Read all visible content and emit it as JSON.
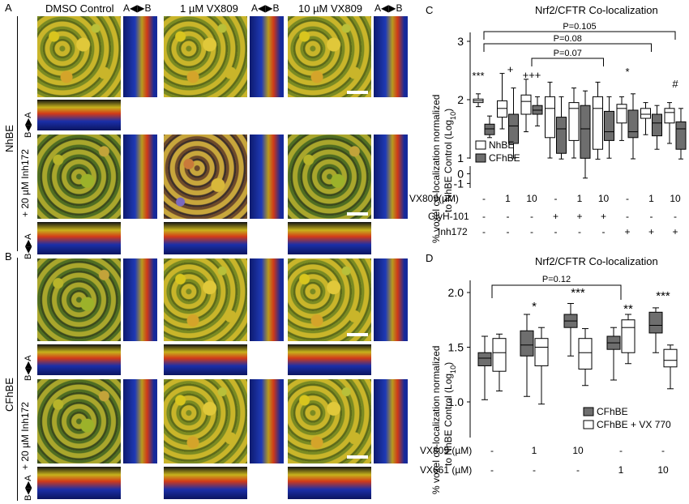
{
  "panel_letters": {
    "a": "A",
    "b": "B",
    "c": "C",
    "d": "D"
  },
  "micro": {
    "col1": "DMSO Control",
    "col2": "1 µM VX809",
    "col3": "10 µM VX809",
    "axis_horizontal": "A◀▶B",
    "axis_vertical": "B◀▶A",
    "row_nhbe": "NhBE",
    "row_cfhbe": "CFhBE",
    "inh_label": "+ 20 µM Inh172"
  },
  "chart_data": [
    {
      "type": "box",
      "title": "Nrf2/CFTR Co-localization",
      "ylabel_line1": "% voxel co-localization normalized",
      "ylabel_line2_prefix": "to NhBE Control (Log",
      "ylabel_line2_sub": "10",
      "ylabel_line2_suffix": ")",
      "yticks": [
        "3",
        "2",
        "1",
        "0",
        "-1"
      ],
      "legend": [
        {
          "name": "NhBE",
          "color": "#ffffff"
        },
        {
          "name": "CFhBE",
          "color": "#6e6e6e"
        }
      ],
      "groups": [
        {
          "vx809": "-",
          "glyh": "-",
          "inh": "-",
          "nhbe": [
            1.88,
            1.95,
            1.98,
            2.01,
            2.1
          ],
          "cf": [
            1.35,
            1.4,
            1.5,
            1.58,
            1.72
          ]
        },
        {
          "vx809": "1",
          "glyh": "-",
          "inh": "-",
          "nhbe": [
            1.5,
            1.7,
            1.85,
            1.98,
            2.45
          ],
          "cf": [
            1.0,
            1.25,
            1.55,
            1.75,
            2.2
          ]
        },
        {
          "vx809": "10",
          "glyh": "-",
          "inh": "-",
          "nhbe": [
            1.45,
            1.75,
            1.97,
            2.08,
            2.35
          ],
          "cf": [
            1.55,
            1.75,
            1.82,
            1.9,
            2.05
          ]
        },
        {
          "vx809": "-",
          "glyh": "+",
          "inh": "-",
          "nhbe": [
            1.0,
            1.35,
            1.85,
            2.05,
            2.3
          ],
          "cf": [
            0.4,
            1.08,
            1.5,
            1.7,
            2.05
          ]
        },
        {
          "vx809": "1",
          "glyh": "+",
          "inh": "-",
          "nhbe": [
            1.0,
            1.3,
            1.85,
            1.95,
            2.2
          ],
          "cf": [
            -0.45,
            0.85,
            1.5,
            1.9,
            2.15
          ]
        },
        {
          "vx809": "10",
          "glyh": "+",
          "inh": "-",
          "nhbe": [
            0.3,
            1.15,
            1.85,
            2.05,
            2.3
          ],
          "cf": [
            0.9,
            1.3,
            1.45,
            1.8,
            2.05
          ]
        },
        {
          "vx809": "-",
          "glyh": "-",
          "inh": "+",
          "nhbe": [
            1.3,
            1.6,
            1.85,
            1.92,
            2.05
          ],
          "cf": [
            0.5,
            1.35,
            1.45,
            1.82,
            2.1
          ]
        },
        {
          "vx809": "1",
          "glyh": "-",
          "inh": "+",
          "nhbe": [
            1.4,
            1.68,
            1.75,
            1.85,
            1.95
          ],
          "cf": [
            1.15,
            1.38,
            1.6,
            1.75,
            1.9
          ]
        },
        {
          "vx809": "10",
          "glyh": "-",
          "inh": "+",
          "nhbe": [
            1.25,
            1.6,
            1.78,
            1.85,
            1.95
          ],
          "cf": [
            0.4,
            1.15,
            1.5,
            1.62,
            1.85
          ]
        }
      ],
      "significance": [
        "***",
        "+",
        "+++",
        "*",
        "#"
      ],
      "brackets": [
        "P=0.105",
        "P=0.08",
        "P=0.07"
      ],
      "row_labels": [
        "VX809(µM)",
        "GlyH-101",
        "Inh172"
      ]
    },
    {
      "type": "box",
      "title": "Nrf2/CFTR Co-localization",
      "ylabel_line1": "% voxel co-localization normalized",
      "ylabel_line2_prefix": "to NhBE Control (Log",
      "ylabel_line2_sub": "10",
      "ylabel_line2_suffix": ")",
      "yticks": [
        "2.0",
        "1.5",
        "1.0"
      ],
      "ylim": [
        0.9,
        2.05
      ],
      "legend": [
        {
          "name": "CFhBE",
          "color": "#6e6e6e"
        },
        {
          "name": "CFhBE + VX 770",
          "color": "#ffffff"
        }
      ],
      "groups": [
        {
          "vx809": "-",
          "vx661": "-",
          "cf": [
            1.02,
            1.33,
            1.4,
            1.45,
            1.6
          ],
          "vx770": [
            1.1,
            1.28,
            1.45,
            1.58,
            1.62
          ]
        },
        {
          "vx809": "1",
          "vx661": "-",
          "cf": [
            1.05,
            1.42,
            1.52,
            1.65,
            1.8
          ],
          "vx770": [
            0.98,
            1.33,
            1.5,
            1.58,
            1.68
          ]
        },
        {
          "vx809": "10",
          "vx661": "-",
          "cf": [
            1.42,
            1.68,
            1.74,
            1.8,
            1.9
          ],
          "vx770": [
            1.15,
            1.3,
            1.45,
            1.58,
            1.67
          ]
        },
        {
          "vx809": "-",
          "vx661": "1",
          "cf": [
            1.2,
            1.48,
            1.54,
            1.6,
            1.68
          ],
          "vx770": [
            1.35,
            1.45,
            1.68,
            1.75,
            1.8
          ]
        },
        {
          "vx809": "-",
          "vx661": "10",
          "cf": [
            1.45,
            1.63,
            1.7,
            1.82,
            1.86
          ],
          "vx770": [
            1.12,
            1.32,
            1.38,
            1.48,
            1.52
          ]
        }
      ],
      "significance": [
        "*",
        "***",
        "**",
        "***"
      ],
      "brackets": [
        "P=0.12"
      ],
      "row_labels": [
        "VX809 (µM)",
        "VX661 (µM)"
      ]
    }
  ]
}
